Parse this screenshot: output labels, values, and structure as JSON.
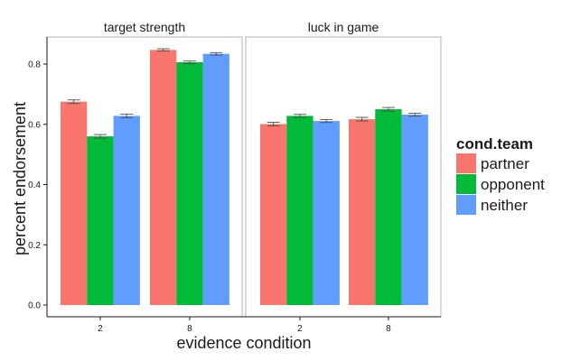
{
  "chart_data": {
    "type": "bar",
    "xlabel": "evidence condition",
    "ylabel": "percent endorsement",
    "ylim": [
      0,
      0.9
    ],
    "yticks": [
      "0.0",
      "0.2",
      "0.4",
      "0.6",
      "0.8"
    ],
    "ytick_values": [
      0,
      0.2,
      0.4,
      0.6,
      0.8
    ],
    "categories": [
      "2",
      "8"
    ],
    "legend": {
      "title": "cond.team",
      "placement": "right",
      "entries": [
        {
          "name": "partner",
          "color": "#F8766D"
        },
        {
          "name": "opponent",
          "color": "#00BA38"
        },
        {
          "name": "neither",
          "color": "#619CFF"
        }
      ]
    },
    "panels": [
      {
        "label": "target strength",
        "series": [
          {
            "name": "partner",
            "values": [
              0.675,
              0.847
            ],
            "err": [
              0.006,
              0.004
            ]
          },
          {
            "name": "opponent",
            "values": [
              0.56,
              0.806
            ],
            "err": [
              0.006,
              0.004
            ]
          },
          {
            "name": "neither",
            "values": [
              0.628,
              0.834
            ],
            "err": [
              0.006,
              0.004
            ]
          }
        ]
      },
      {
        "label": "luck in game",
        "series": [
          {
            "name": "partner",
            "values": [
              0.601,
              0.617
            ],
            "err": [
              0.006,
              0.006
            ]
          },
          {
            "name": "opponent",
            "values": [
              0.628,
              0.65
            ],
            "err": [
              0.005,
              0.006
            ]
          },
          {
            "name": "neither",
            "values": [
              0.611,
              0.632
            ],
            "err": [
              0.005,
              0.005
            ]
          }
        ]
      }
    ]
  }
}
